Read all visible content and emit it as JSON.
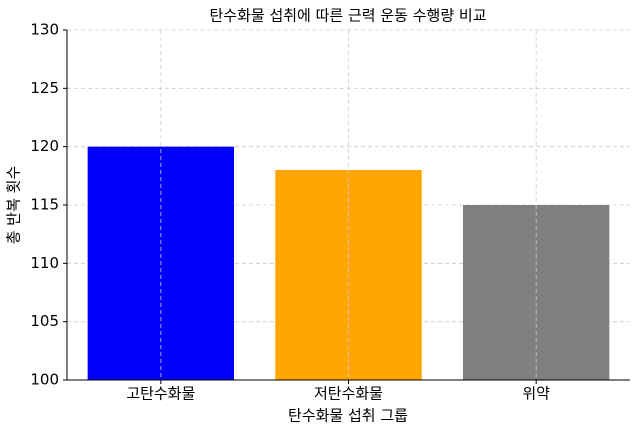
{
  "chart_data": {
    "type": "bar",
    "title": "탄수화물 섭취에 따른 근력 운동 수행량 비교",
    "x_label": "탄수화물 섭취 그룹",
    "y_label": "총 반복 횟수",
    "categories": [
      "고탄수화물",
      "저탄수화물",
      "위약"
    ],
    "values": [
      120,
      118,
      115
    ],
    "colors": [
      "#0000ff",
      "#ffa500",
      "#808080"
    ],
    "ylim": [
      100,
      130
    ],
    "yticks": [
      100,
      105,
      110,
      115,
      120,
      125,
      130
    ],
    "grid": true
  }
}
